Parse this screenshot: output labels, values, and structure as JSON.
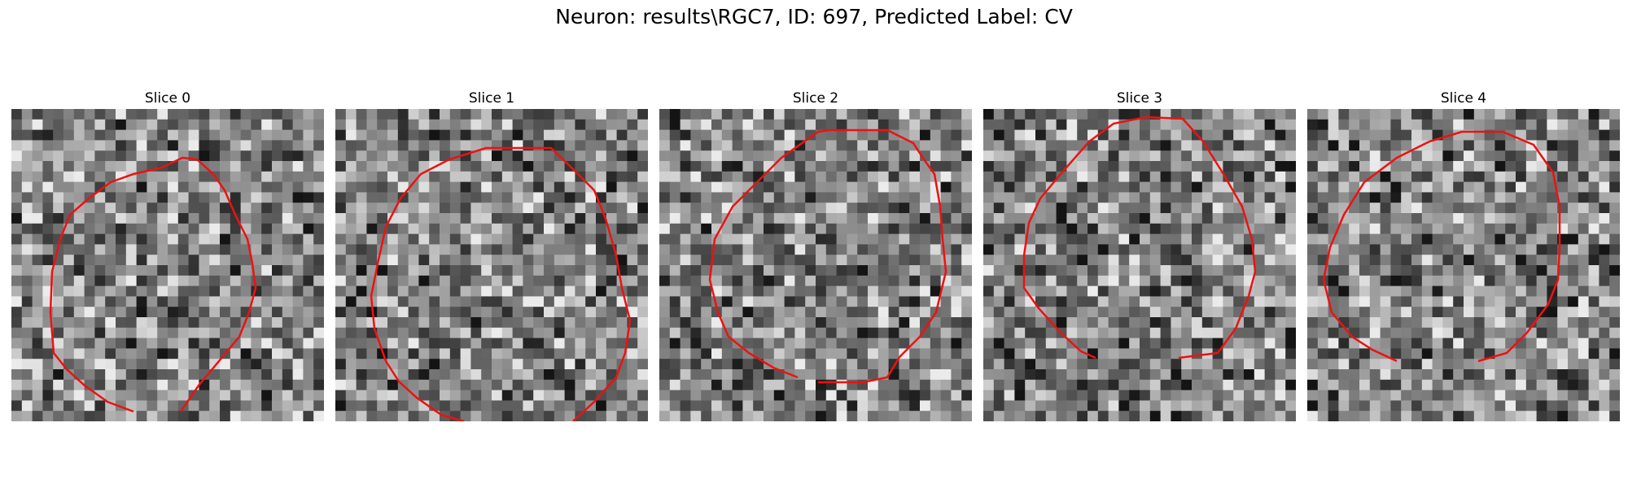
{
  "figure": {
    "title": "Neuron: results\\RGC7, ID: 697, Predicted Label: CV",
    "contour_color": "#ee1111"
  },
  "panels": [
    {
      "title": "Slice 0"
    },
    {
      "title": "Slice 1"
    },
    {
      "title": "Slice 2"
    },
    {
      "title": "Slice 3"
    },
    {
      "title": "Slice 4"
    }
  ]
}
